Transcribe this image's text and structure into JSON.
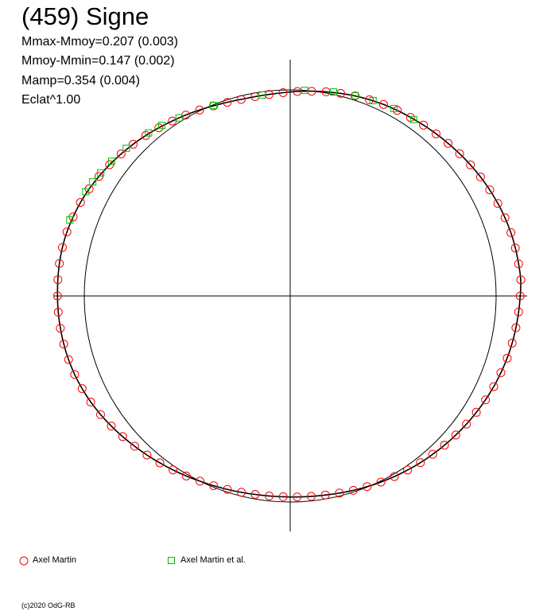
{
  "header": {
    "title": "(459) Signe",
    "stats": [
      "Mmax-Mmoy=0.207 (0.003)",
      "Mmoy-Mmin=0.147 (0.002)",
      "Mamp=0.354 (0.004)",
      "Eclat^1.00"
    ]
  },
  "legend": [
    {
      "label": "Axel Martin",
      "marker": "circle",
      "color": "#ff0000"
    },
    {
      "label": "Axel Martin et al.",
      "marker": "square",
      "color": "#00c000"
    }
  ],
  "copyright": "(c)2020 OdG-RB",
  "chart_data": {
    "type": "scatter",
    "coordinate_system": "polar",
    "value_meaning": "radius r relative to reference circle (r = 1)",
    "r_range": [
      0,
      1.16
    ],
    "reference_circle_r": 1.0,
    "axes": "crosshair through center",
    "grid": false,
    "legend_placement": "bottom",
    "series": [
      {
        "name": "Axel Martin",
        "marker": "circle",
        "color": "#ff0000",
        "points": [
          [
            0,
            1.117
          ],
          [
            4,
            1.123
          ],
          [
            8,
            1.12
          ],
          [
            12,
            1.118
          ],
          [
            16,
            1.115
          ],
          [
            20,
            1.11
          ],
          [
            24,
            1.104
          ],
          [
            28,
            1.097
          ],
          [
            32,
            1.09
          ],
          [
            36,
            1.082
          ],
          [
            40,
            1.074
          ],
          [
            44,
            1.066
          ],
          [
            48,
            1.059
          ],
          [
            52,
            1.052
          ],
          [
            56,
            1.045
          ],
          [
            60,
            1.04
          ],
          [
            64,
            1.034
          ],
          [
            68,
            1.027
          ],
          [
            72,
            1.021
          ],
          [
            76,
            1.013
          ],
          [
            80,
            1.006
          ],
          [
            84,
            0.999
          ],
          [
            88,
            0.993
          ],
          [
            92,
            0.987
          ],
          [
            96,
            0.983
          ],
          [
            100,
            0.982
          ],
          [
            104,
            0.983
          ],
          [
            108,
            0.988
          ],
          [
            112,
            0.995
          ],
          [
            116,
            1.004
          ],
          [
            120,
            1.014
          ],
          [
            124,
            1.024
          ],
          [
            128,
            1.036
          ],
          [
            132,
            1.048
          ],
          [
            136,
            1.06
          ],
          [
            140,
            1.072
          ],
          [
            144,
            1.084
          ],
          [
            148,
            1.095
          ],
          [
            152,
            1.106
          ],
          [
            156,
            1.115
          ],
          [
            160,
            1.122
          ],
          [
            164,
            1.128
          ],
          [
            168,
            1.131
          ],
          [
            172,
            1.132
          ],
          [
            176,
            1.131
          ],
          [
            180,
            1.13
          ],
          [
            184,
            1.129
          ],
          [
            188,
            1.127
          ],
          [
            192,
            1.124
          ],
          [
            196,
            1.12
          ],
          [
            200,
            1.114
          ],
          [
            204,
            1.106
          ],
          [
            208,
            1.097
          ],
          [
            212,
            1.086
          ],
          [
            216,
            1.074
          ],
          [
            220,
            1.062
          ],
          [
            224,
            1.05
          ],
          [
            228,
            1.039
          ],
          [
            232,
            1.028
          ],
          [
            236,
            1.018
          ],
          [
            240,
            1.009
          ],
          [
            244,
            1.0
          ],
          [
            248,
            0.993
          ],
          [
            252,
            0.987
          ],
          [
            256,
            0.982
          ],
          [
            260,
            0.978
          ],
          [
            264,
            0.976
          ],
          [
            268,
            0.975
          ],
          [
            272,
            0.976
          ],
          [
            276,
            0.978
          ],
          [
            280,
            0.981
          ],
          [
            284,
            0.986
          ],
          [
            288,
            0.992
          ],
          [
            292,
            0.998
          ],
          [
            296,
            1.005
          ],
          [
            300,
            1.012
          ],
          [
            304,
            1.019
          ],
          [
            308,
            1.027
          ],
          [
            312,
            1.034
          ],
          [
            316,
            1.042
          ],
          [
            320,
            1.05
          ],
          [
            324,
            1.058
          ],
          [
            328,
            1.066
          ],
          [
            332,
            1.074
          ],
          [
            336,
            1.082
          ],
          [
            340,
            1.089
          ],
          [
            344,
            1.096
          ],
          [
            348,
            1.102
          ],
          [
            352,
            1.107
          ],
          [
            356,
            1.112
          ]
        ]
      },
      {
        "name": "Axel Martin et al.",
        "marker": "square",
        "color": "#00c000",
        "points": [
          [
            55,
            1.045
          ],
          [
            61,
            1.04
          ],
          [
            67,
            1.03
          ],
          [
            72,
            1.022
          ],
          [
            78,
            1.012
          ],
          [
            86,
            1.0
          ],
          [
            98,
            0.985
          ],
          [
            112,
            0.997
          ],
          [
            122,
            1.019
          ],
          [
            127,
            1.036
          ],
          [
            131,
            1.048
          ],
          [
            138,
            1.071
          ],
          [
            143,
            1.086
          ],
          [
            147,
            1.097
          ],
          [
            150,
            1.107
          ],
          [
            153,
            1.114
          ],
          [
            161,
            1.132
          ]
        ]
      }
    ]
  }
}
